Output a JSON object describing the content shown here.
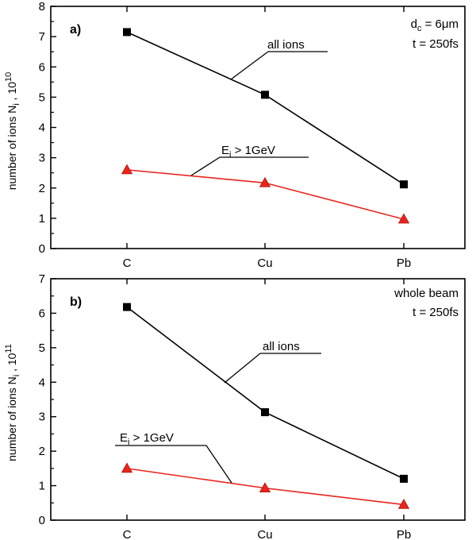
{
  "chart_data": [
    {
      "type": "line",
      "panel_label": "a)",
      "categories": [
        "C",
        "Cu",
        "Pb"
      ],
      "ylim": [
        0,
        8
      ],
      "yticks": [
        0,
        1,
        2,
        3,
        4,
        5,
        6,
        7,
        8
      ],
      "ylabel": {
        "main": "number of ions N",
        "sub": "i",
        "sep": " , 10",
        "exp": "10"
      },
      "info_lines": [
        {
          "main": "d",
          "sub": "c",
          "rest": " = 6μm"
        },
        {
          "main": "t = 250fs",
          "sub": "",
          "rest": ""
        }
      ],
      "series": [
        {
          "name": "all ions",
          "label": {
            "main": "all ions",
            "sub": "",
            "rest": ""
          },
          "color": "#000000",
          "marker": "square",
          "values": [
            7.15,
            5.08,
            2.12
          ]
        },
        {
          "name": "Ei > 1GeV",
          "label": {
            "main": "E",
            "sub": "i",
            "rest": " > 1GeV"
          },
          "color": "#e8251c",
          "marker": "triangle",
          "values": [
            2.6,
            2.17,
            0.97
          ]
        }
      ]
    },
    {
      "type": "line",
      "panel_label": "b)",
      "categories": [
        "C",
        "Cu",
        "Pb"
      ],
      "ylim": [
        0,
        7
      ],
      "yticks": [
        0,
        1,
        2,
        3,
        4,
        5,
        6,
        7
      ],
      "ylabel": {
        "main": "number of ions N",
        "sub": "i",
        "sep": " , 10",
        "exp": "11"
      },
      "info_lines": [
        {
          "main": "whole beam",
          "sub": "",
          "rest": ""
        },
        {
          "main": "t = 250fs",
          "sub": "",
          "rest": ""
        }
      ],
      "series": [
        {
          "name": "all ions",
          "label": {
            "main": "all ions",
            "sub": "",
            "rest": ""
          },
          "color": "#000000",
          "marker": "square",
          "values": [
            6.18,
            3.13,
            1.2
          ]
        },
        {
          "name": "Ei > 1GeV",
          "label": {
            "main": "E",
            "sub": "i",
            "rest": " > 1GeV"
          },
          "color": "#e8251c",
          "marker": "triangle",
          "values": [
            1.5,
            0.93,
            0.45
          ]
        }
      ]
    }
  ]
}
